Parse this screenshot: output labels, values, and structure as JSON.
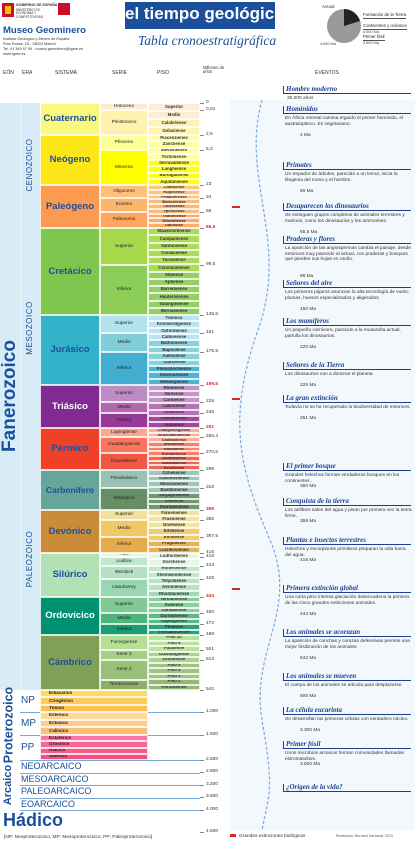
{
  "header": {
    "government": "GOBIERNO DE ESPAÑA",
    "ministry": "MINISTERIO DE ECONOMÍA Y COMPETITIVIDAD",
    "museum": "Museo Geominero",
    "institute": "Instituto Geológico y Minero de España",
    "address": "Ríos Rosas, 23 - 28003 Madrid",
    "contact": "Tel. 91 349 57 59 - museo.geominero@igme.es",
    "web": "www.igme.es",
    "title": "el tiempo geológico",
    "subtitle": "Tabla cronoestratigráfica"
  },
  "legend": {
    "now": "Actual",
    "items": [
      {
        "label": "Formación de la Tierra",
        "date": "4.600 Ma"
      },
      {
        "label": "Continentes y océanos",
        "date": "4.000 Ma"
      },
      {
        "label": "Primer fósil",
        "date": "3.500 Ma"
      }
    ]
  },
  "columns": {
    "eon": "EÓN",
    "era": "ERA",
    "system": "SISTEMA",
    "series": "SERIE",
    "stage": "PISO",
    "age": "Millones de años",
    "events": "EVENTOS"
  },
  "eons": [
    "Fanerozoico",
    "Proterozoico",
    "Arcaico",
    "Hádico"
  ],
  "eras": [
    "CENOZOICO",
    "MESOZOICO",
    "PALEOZOICO"
  ],
  "proterozoic_eras": [
    {
      "name": "NP",
      "periods": [
        "Ediacárico",
        "Criogénico",
        "Tónico"
      ]
    },
    {
      "name": "MP",
      "periods": [
        "Esténico",
        "Ectásico",
        "Calímico"
      ]
    },
    {
      "name": "PP",
      "periods": [
        "Estatérico",
        "Orosírico",
        "Riácico",
        "Sidérico"
      ]
    }
  ],
  "archean_eras": [
    "NEOARCAICO",
    "MESOARCAICO",
    "PALEOARCAICO",
    "EOARCAICO"
  ],
  "systems": [
    {
      "name": "Cuaternario",
      "series": [
        "Holoceno",
        "Pleistoceno"
      ],
      "stages": [
        "Superior",
        "Medio",
        "Calabriense",
        "Gelasiense"
      ]
    },
    {
      "name": "Neógeno",
      "series": [
        "Plioceno",
        "Mioceno"
      ],
      "stages": [
        "Piacenziense",
        "Zancliense",
        "Messiniense",
        "Tortoniense",
        "Serravalliense",
        "Langhiense",
        "Burdigaliense",
        "Aquitaniense"
      ]
    },
    {
      "name": "Paleógeno",
      "series": [
        "Oligoceno",
        "Eoceno",
        "Paleoceno"
      ],
      "stages": [
        "Chattiense",
        "Rupeliense",
        "Priaboniense",
        "Bartoniense",
        "Luteciense",
        "Ypresiense",
        "Thanetiense",
        "Selandiense",
        "Daniense"
      ]
    },
    {
      "name": "Cretácico",
      "series": [
        "Superior",
        "Inferior"
      ],
      "stages": [
        "Maastrichtiense",
        "Campaniense",
        "Santoniense",
        "Coniaciense",
        "Turoniense",
        "Cenomaniense",
        "Albiense",
        "Aptiense",
        "Barremiense",
        "Hauteriviense",
        "Valanginiense",
        "Berriasiense"
      ]
    },
    {
      "name": "Jurásico",
      "series": [
        "Superior",
        "Medio",
        "Inferior"
      ],
      "stages": [
        "Titónico",
        "Kimmeridgiense",
        "Oxfordiense",
        "Calloviense",
        "Bathoniense",
        "Bajociense",
        "Aaleniense",
        "Toarciense",
        "Pliensbachiense",
        "Sinemuriense",
        "Hettangiense"
      ]
    },
    {
      "name": "Triásico",
      "series": [
        "Superior",
        "Medio",
        "Inferior"
      ],
      "stages": [
        "Rhetiense",
        "Noriense",
        "Carniense",
        "Ladiniense",
        "Anisiense",
        "Olenekiense",
        "Induense"
      ]
    },
    {
      "name": "Pérmico",
      "series": [
        "Lopingiense",
        "Guadalupiense",
        "Cisuraliense"
      ],
      "stages": [
        "Changhsingiense",
        "Wuchiapingiense",
        "Capitaniense",
        "Wordiense",
        "Roadiense",
        "Kunguriense",
        "Artinskiense",
        "Sakmariense",
        "Asseliense"
      ]
    },
    {
      "name": "Carbonífero",
      "series": [
        "Pensilvánico",
        "Misisípico"
      ],
      "stages": [
        "Gzheliense",
        "Kasimoviense",
        "Moscoviense",
        "Bashkiriense",
        "Serpujoviense",
        "Viseense",
        "Tournaisiense"
      ]
    },
    {
      "name": "Devónico",
      "series": [
        "Superior",
        "Medio",
        "Inferior"
      ],
      "stages": [
        "Fameniense",
        "Frasniense",
        "Givetiense",
        "Eifeliense",
        "Emsiense",
        "Praguiense",
        "Lochkoviense"
      ]
    },
    {
      "name": "Silúrico",
      "series": [
        "Pridoli",
        "Ludlow",
        "Wenlock",
        "Llandovery"
      ],
      "stages": [
        "Ludfordiense",
        "Gorstiense",
        "Homeriense",
        "Sheinwoodiense",
        "Telychiense",
        "Aeroniense",
        "Rhuddaniense"
      ]
    },
    {
      "name": "Ordovícico",
      "series": [
        "Superior",
        "Medio",
        "Inferior"
      ],
      "stages": [
        "Hirnantiense",
        "Katiense",
        "Sandbiense",
        "Darriwiliense",
        "Dapingiense",
        "Floiense",
        "Tremadociense"
      ]
    },
    {
      "name": "Cámbrico",
      "series": [
        "Furongiense",
        "Serie 3",
        "Serie 2",
        "Terranovense"
      ],
      "stages": [
        "Piso 10",
        "Piso 9",
        "Paibiense",
        "Guzhangiense",
        "Drumiense",
        "Piso 5",
        "Piso 4",
        "Piso 3",
        "Piso 2",
        "Fortuniense"
      ]
    }
  ],
  "ages": [
    "0",
    "0,01",
    "2,5",
    "5,3",
    "23",
    "34",
    "56",
    "65,5",
    "99,5",
    "145,5",
    "161",
    "175,5",
    "199,5",
    "228",
    "245",
    "251",
    "260,4",
    "270,6",
    "299",
    "318",
    "359",
    "385",
    "397,5",
    "416",
    "419",
    "423",
    "428",
    "444",
    "460",
    "472",
    "488",
    "501",
    "513",
    "542",
    "1.000",
    "1.600",
    "2.500",
    "2.800",
    "3.200",
    "3.600",
    "4.000",
    "4.600"
  ],
  "events": [
    {
      "title": "Hombre moderno",
      "date": "35.000 años"
    },
    {
      "title": "Homínidos",
      "text": "En África oriental camina erguido el primer homínido, el australopiteco. Es vegetariano.",
      "date": "4 Ma"
    },
    {
      "title": "Primates",
      "text": "Un trepador de árboles, parecido a un lemur, inicia la filogenia del mono y el hombre.",
      "date": "60 Ma"
    },
    {
      "title": "Desaparecen los dinosaurios",
      "text": "Se extinguen grupos completos de animales terrestres y marinos, como los dinosaurios y los ammonites.",
      "date": "65,5 Ma"
    },
    {
      "title": "Praderas y flores",
      "text": "La aparición de las angiospermas cambia el paisaje, desde entonces muy parecido al actual, con praderas y bosques que pierden sus hojas en otoño.",
      "date": "96 Ma"
    },
    {
      "title": "Señores del aire",
      "text": "Los primeros pájaros anuncian la alta tecnología de vuelo: plumas, huesos especializados y aligerados.",
      "date": "150 Ma"
    },
    {
      "title": "Los mamíferos",
      "text": "Un pequeño carnívoro, parecido a la musaraña actual, patrulla los dinosaurios.",
      "date": "220 Ma"
    },
    {
      "title": "Señores de la Tierra",
      "text": "Los dinosaurios van a dominar el planeta.",
      "date": "225 Ma"
    },
    {
      "title": "La gran extinción",
      "text": "Todavía no se ha recuperado la biodiversidad de entonces.",
      "date": "251 Ma"
    },
    {
      "title": "El primer bosque",
      "text": "Grandes helechos forman verdaderos bosques en los continentes.",
      "date": "350 Ma"
    },
    {
      "title": "Conquista de la tierra",
      "text": "Los anfibios salen del agua y pisan por primera vez la tierra firme.",
      "date": "359 Ma"
    },
    {
      "title": "Plantas e insectos terrestres",
      "text": "Helechos y escorpiones primitivos preparan la vida fuera del agua.",
      "date": "416 Ma"
    },
    {
      "title": "Primera extinción global",
      "text": "Una corta pero intensa glaciación desencadena la primera de las cinco grandes extinciones animales.",
      "date": "444 Ma"
    },
    {
      "title": "Los animales se acorazan",
      "text": "La aparición de conchas y corazas defensivas permite una mejor fosilización de los animales.",
      "date": "542 Ma"
    },
    {
      "title": "Los animales se mueven",
      "text": "El cuerpo de los animales se articula para desplazarse.",
      "date": "600 Ma"
    },
    {
      "title": "La célula eucariota",
      "text": "Se desarrollan las primeras células con verdadero núcleo.",
      "date": "2.300 Ma"
    },
    {
      "title": "Primer fósil",
      "text": "Unos microbios arcaicos forman comunidades llamadas estromatolitos.",
      "date": "3.500 Ma"
    },
    {
      "title": "¿Origen de la vida?"
    }
  ],
  "footer": {
    "abbreviations": "[NP: Neoproterozoico, MP: Mesoproterozoico, PP: Paleoproterozoico]",
    "extinctions": "Grandes extinciones biológicas",
    "credit": "Redacción: Bernard Gerhardt, 2013"
  }
}
